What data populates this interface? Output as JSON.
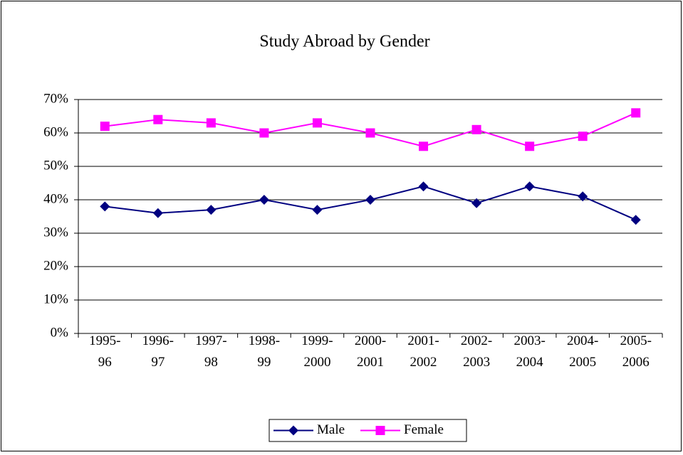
{
  "chart_data": {
    "type": "line",
    "title": "Study Abroad by Gender",
    "categories": [
      "1995-96",
      "1996-97",
      "1997-98",
      "1998-99",
      "1999-2000",
      "2000-2001",
      "2001-2002",
      "2002-2003",
      "2003-2004",
      "2004-2005",
      "2005-2006"
    ],
    "series": [
      {
        "name": "Male",
        "color": "#000080",
        "marker": "diamond",
        "values": [
          38,
          36,
          37,
          40,
          37,
          40,
          44,
          39,
          44,
          41,
          34
        ]
      },
      {
        "name": "Female",
        "color": "#ff00ff",
        "marker": "square",
        "values": [
          62,
          64,
          63,
          60,
          63,
          60,
          56,
          61,
          56,
          59,
          66
        ]
      }
    ],
    "ylim": [
      0,
      70
    ],
    "yticks": [
      {
        "value": 0,
        "label": "0%"
      },
      {
        "value": 10,
        "label": "10%"
      },
      {
        "value": 20,
        "label": "20%"
      },
      {
        "value": 30,
        "label": "30%"
      },
      {
        "value": 40,
        "label": "40%"
      },
      {
        "value": 50,
        "label": "50%"
      },
      {
        "value": 60,
        "label": "60%"
      },
      {
        "value": 70,
        "label": "70%"
      }
    ],
    "grid": true,
    "legend": "bottom"
  }
}
